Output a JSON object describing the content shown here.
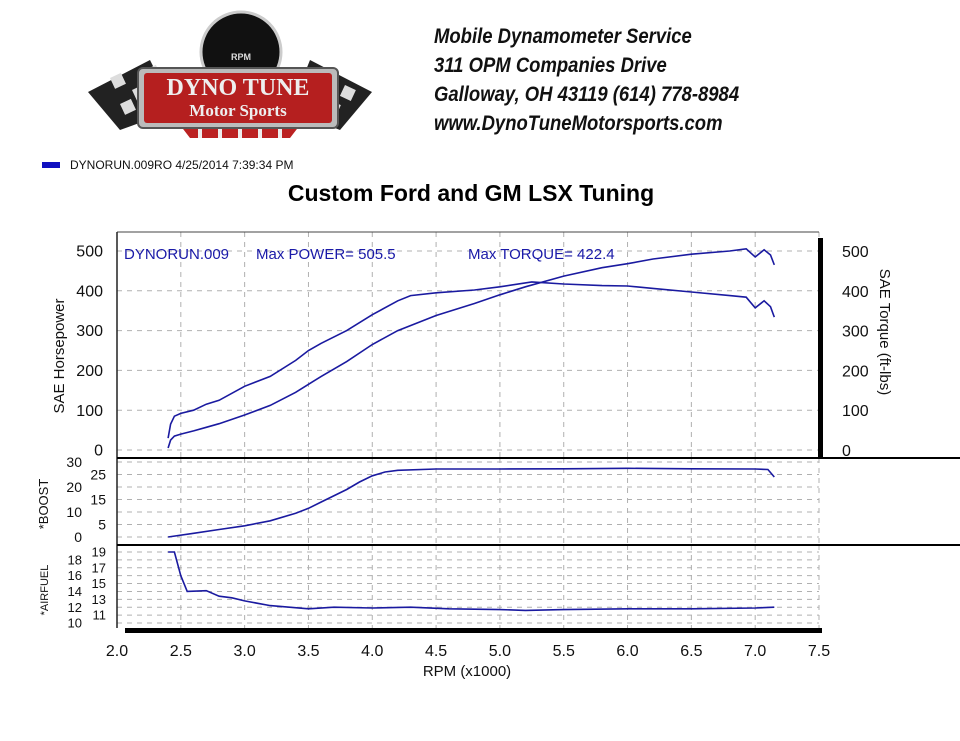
{
  "header": {
    "logo_text": [
      "DYNO TUNE",
      "Motor Sports",
      "RPM"
    ],
    "lines": [
      "Mobile Dynamometer Service",
      "311 OPM Companies Drive",
      "Galloway, OH  43119   (614)  778-8984",
      "www.DynoTuneMotorsports.com"
    ]
  },
  "legend": {
    "label": "DYNORUN.009RO  4/25/2014 7:39:34 PM",
    "color": "#1010c0"
  },
  "colors": {
    "series": "#1a1aa0",
    "grid": "#b0b0b0"
  },
  "chart_data": {
    "type": "line",
    "title": "Custom Ford and GM LSX Tuning",
    "xlabel": "RPM (x1000)",
    "xlim": [
      2.0,
      7.5
    ],
    "xticks": [
      "2.0",
      "2.5",
      "3.0",
      "3.5",
      "4.0",
      "4.5",
      "5.0",
      "5.5",
      "6.0",
      "6.5",
      "7.0",
      "7.5"
    ],
    "grid": true,
    "annotation": {
      "run": "DYNORUN.009",
      "power": "Max POWER= 505.5",
      "torque": "Max TORQUE= 422.4"
    },
    "panels": [
      {
        "ylabel": "SAE Horsepower",
        "ylabel_right": "SAE Torque (ft-lbs)",
        "ylim": [
          0,
          520
        ],
        "yticks": [
          "0",
          "100",
          "200",
          "300",
          "400",
          "500"
        ],
        "series": [
          {
            "name": "SAE Horsepower",
            "x": [
              2.4,
              2.42,
              2.45,
              2.5,
              2.6,
              2.7,
              2.8,
              3.0,
              3.2,
              3.4,
              3.5,
              3.6,
              3.8,
              4.0,
              4.2,
              4.5,
              4.8,
              5.0,
              5.2,
              5.5,
              5.8,
              6.0,
              6.2,
              6.5,
              6.8,
              6.93,
              7.0,
              7.07,
              7.12,
              7.15
            ],
            "y": [
              5,
              25,
              35,
              40,
              48,
              57,
              66,
              88,
              112,
              145,
              165,
              185,
              222,
              265,
              300,
              338,
              368,
              390,
              410,
              437,
              458,
              468,
              480,
              492,
              500,
              505.5,
              485,
              503,
              490,
              465
            ]
          },
          {
            "name": "SAE Torque",
            "x": [
              2.4,
              2.42,
              2.45,
              2.5,
              2.6,
              2.7,
              2.8,
              3.0,
              3.2,
              3.4,
              3.5,
              3.6,
              3.8,
              4.0,
              4.2,
              4.3,
              4.5,
              4.8,
              5.0,
              5.25,
              5.5,
              5.8,
              6.0,
              6.2,
              6.5,
              6.8,
              6.93,
              7.0,
              7.07,
              7.12,
              7.15
            ],
            "y": [
              30,
              65,
              85,
              92,
              100,
              115,
              125,
              160,
              185,
              225,
              250,
              268,
              300,
              340,
              375,
              388,
              395,
              402,
              410,
              422.4,
              417,
              413,
              412,
              406,
              397,
              388,
              384,
              357,
              375,
              360,
              334
            ]
          }
        ]
      },
      {
        "ylabel": "*BOOST",
        "ylim": [
          0,
          32
        ],
        "yticks": [
          "0",
          "5",
          "10",
          "15",
          "20",
          "25",
          "30"
        ],
        "series": [
          {
            "name": "BOOST",
            "x": [
              2.4,
              2.6,
              2.8,
              3.0,
              3.2,
              3.4,
              3.5,
              3.6,
              3.8,
              3.9,
              4.0,
              4.1,
              4.2,
              4.5,
              5.0,
              5.5,
              6.0,
              6.5,
              7.0,
              7.1,
              7.15
            ],
            "y": [
              0,
              1.5,
              3,
              4.5,
              6.5,
              9.5,
              11.5,
              14,
              19,
              22,
              24.5,
              26,
              26.7,
              27.2,
              27.2,
              27.3,
              27.5,
              27.3,
              27.2,
              27,
              24
            ]
          }
        ]
      },
      {
        "ylabel": "*AIRFUEL",
        "ylim": [
          10,
          19.5
        ],
        "yticks": [
          "10",
          "11",
          "12",
          "13",
          "14",
          "15",
          "16",
          "17",
          "18",
          "19"
        ],
        "series": [
          {
            "name": "AIRFUEL",
            "x": [
              2.4,
              2.45,
              2.5,
              2.55,
              2.7,
              2.8,
              2.9,
              3.0,
              3.2,
              3.5,
              3.7,
              4.0,
              4.3,
              4.6,
              5.0,
              5.2,
              5.5,
              6.0,
              6.5,
              7.0,
              7.15
            ],
            "y": [
              19,
              19,
              16,
              14,
              14.1,
              13.4,
              13.2,
              12.8,
              12.2,
              11.8,
              12.0,
              11.9,
              12.0,
              11.8,
              11.7,
              11.6,
              11.7,
              11.8,
              11.8,
              11.9,
              12.0
            ]
          }
        ]
      }
    ]
  }
}
